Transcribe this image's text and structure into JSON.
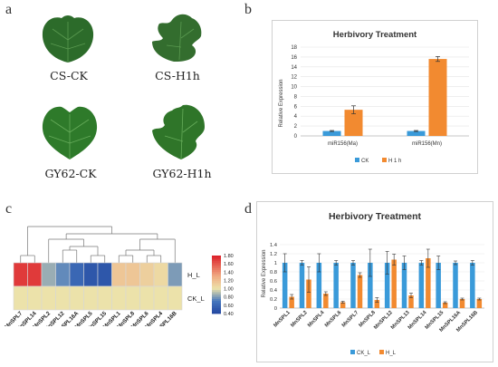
{
  "panels": {
    "a": "a",
    "b": "b",
    "c": "c",
    "d": "d"
  },
  "leaves": [
    {
      "caption": "CS-CK",
      "damage": "none",
      "color": "#2c6b2a"
    },
    {
      "caption": "CS-H1h",
      "damage": "heavy",
      "color": "#336d2e"
    },
    {
      "caption": "GY62-CK",
      "damage": "none",
      "color": "#2e7a2a"
    },
    {
      "caption": "GY62-H1h",
      "damage": "moderate",
      "color": "#2f7529"
    }
  ],
  "chart_b": {
    "type": "bar",
    "title": "Herbivory Treatment",
    "ylabel": "Relative Expression",
    "ylim": [
      0,
      18
    ],
    "yticks": [
      0,
      2,
      4,
      6,
      8,
      10,
      12,
      14,
      16,
      18
    ],
    "categories": [
      "miR156(Ma)",
      "miR156(Mn)"
    ],
    "series": [
      {
        "name": "CK",
        "color": "#3a9ad9",
        "values": [
          1,
          1
        ],
        "errors": [
          0.1,
          0.1
        ]
      },
      {
        "name": "H 1 h",
        "color": "#f28a30",
        "values": [
          5.3,
          15.6
        ],
        "errors": [
          0.8,
          0.5
        ]
      }
    ],
    "legend_position": "bottom"
  },
  "chart_c": {
    "type": "heatmap",
    "columns": [
      "MnSPL7",
      "MnSPL14",
      "MnSPL2",
      "MnSPL12",
      "MnSPL16A",
      "MnSPL5",
      "MnSPL15",
      "MnSPL1",
      "MnSPL8",
      "MnSPL6",
      "MnSPL4",
      "MnSPL16B"
    ],
    "rows": [
      "H_L",
      "CK_L"
    ],
    "values": [
      [
        1.7,
        1.7,
        0.85,
        0.75,
        0.6,
        0.5,
        0.5,
        1.15,
        1.15,
        1.1,
        1.05,
        0.8
      ],
      [
        1.0,
        1.0,
        1.0,
        1.0,
        1.0,
        1.0,
        1.0,
        1.0,
        1.0,
        1.0,
        1.0,
        1.0
      ]
    ],
    "colorbar_ticks": [
      "1.80",
      "1.60",
      "1.40",
      "1.20",
      "1.00",
      "0.80",
      "0.60",
      "0.40"
    ],
    "colorbar_range": [
      0.4,
      1.8
    ]
  },
  "chart_d": {
    "type": "bar",
    "title": "Herbivory Treatment",
    "ylabel": "Relative Expression",
    "ylim": [
      0,
      1.4
    ],
    "yticks": [
      "0",
      "0.2",
      "0.4",
      "0.6",
      "0.8",
      "1",
      "1.2",
      "1.4"
    ],
    "categories": [
      "MnSPL1",
      "MnSPL2",
      "MnSPL4",
      "MnSPL6",
      "MnSPL7",
      "MnSPL8",
      "MnSPL12",
      "MnSPL13",
      "MnSPL14",
      "MnSPL15",
      "MnSPL16A",
      "MnSPL16B"
    ],
    "series": [
      {
        "name": "CK_L",
        "color": "#3a9ad9",
        "values": [
          1,
          1,
          1,
          1,
          1,
          1,
          1,
          1,
          1,
          1,
          1,
          1
        ],
        "errors": [
          0.2,
          0.05,
          0.2,
          0.05,
          0.05,
          0.3,
          0.25,
          0.15,
          0.05,
          0.15,
          0.04,
          0.05
        ]
      },
      {
        "name": "H_L",
        "color": "#f28a30",
        "values": [
          0.25,
          0.63,
          0.32,
          0.13,
          0.73,
          0.18,
          1.07,
          0.28,
          1.1,
          0.12,
          0.2,
          0.2
        ],
        "errors": [
          0.05,
          0.28,
          0.04,
          0.02,
          0.05,
          0.05,
          0.12,
          0.05,
          0.2,
          0.02,
          0.02,
          0.02
        ]
      }
    ],
    "legend_position": "bottom"
  }
}
